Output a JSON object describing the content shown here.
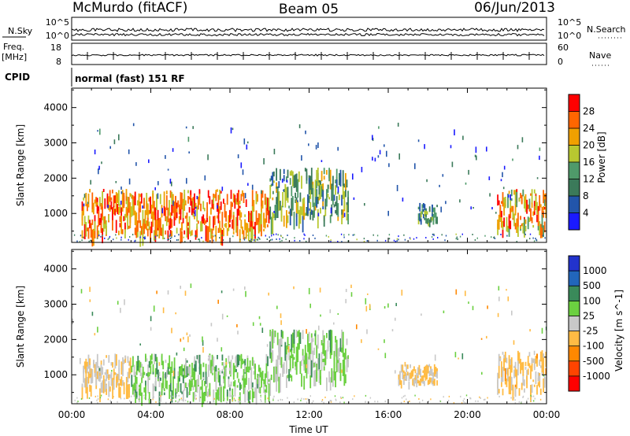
{
  "header": {
    "station": "McMurdo (fitACF)",
    "beam": "Beam 05",
    "date": "06/Jun/2013"
  },
  "top_panels": {
    "nsky_label": "N.Sky",
    "nsearch_label": "N.Search",
    "nsky_ticks": [
      "10^5",
      "10^0"
    ],
    "nsearch_ticks": [
      "10^5",
      "10^0"
    ],
    "freq_label_line1": "Freq.",
    "freq_label_line2": "[MHz]",
    "freq_ticks": [
      "18",
      "8"
    ],
    "nave_label": "Nave",
    "nave_ticks": [
      "60",
      "0"
    ],
    "cpid_label": "CPID",
    "cpid_value": "normal (fast) 151 RF"
  },
  "colors": {
    "power_scale": [
      "#1a1aff",
      "#2255aa",
      "#3b7a5a",
      "#4f9a6a",
      "#b8c830",
      "#f0a000",
      "#ff6600",
      "#ff0000"
    ],
    "velocity_scale": [
      "#ff0000",
      "#ff4400",
      "#ff8800",
      "#ffbb44",
      "#c8c8c8",
      "#6bd040",
      "#3a8a5a",
      "#2266bb",
      "#2233cc"
    ]
  },
  "chart_data": [
    {
      "type": "heatmap",
      "title": "",
      "xlabel": "",
      "ylabel": "Slant Range [km]",
      "x_ticks": [
        "00:00",
        "04:00",
        "08:00",
        "12:00",
        "16:00",
        "20:00",
        "00:00"
      ],
      "y_ticks": [
        "1000",
        "2000",
        "3000",
        "4000"
      ],
      "ylim": [
        180,
        4550
      ],
      "colorbar_label": "Power [dB]",
      "colorbar_ticks": [
        "4",
        "8",
        "12",
        "16",
        "20",
        "24",
        "28"
      ],
      "zlim": [
        0,
        32
      ],
      "scatter_regions": [
        {
          "start_hour": 0.5,
          "end_hour": 10.0,
          "range_low_km": 500,
          "range_high_km": 1700,
          "typical_value": 24
        },
        {
          "start_hour": 10.0,
          "end_hour": 14.0,
          "range_low_km": 900,
          "range_high_km": 2300,
          "typical_value": 14
        },
        {
          "start_hour": 17.5,
          "end_hour": 18.5,
          "range_low_km": 800,
          "range_high_km": 1300,
          "typical_value": 12
        },
        {
          "start_hour": 21.5,
          "end_hour": 24.0,
          "range_low_km": 600,
          "range_high_km": 1700,
          "typical_value": 22
        }
      ]
    },
    {
      "type": "heatmap",
      "title": "",
      "xlabel": "Time UT",
      "ylabel": "Slant Range [km]",
      "x_ticks": [
        "00:00",
        "04:00",
        "08:00",
        "12:00",
        "16:00",
        "20:00",
        "00:00"
      ],
      "y_ticks": [
        "1000",
        "2000",
        "3000",
        "4000"
      ],
      "ylim": [
        180,
        4550
      ],
      "colorbar_label": "Velocity [m s^-1]",
      "colorbar_ticks": [
        "-1000",
        "-500",
        "-100",
        "-25",
        "25",
        "100",
        "500",
        "1000"
      ],
      "zlim": [
        -1250,
        1250
      ],
      "scatter_regions": [
        {
          "start_hour": 0.5,
          "end_hour": 3.0,
          "range_low_km": 600,
          "range_high_km": 1600,
          "typical_value": -150
        },
        {
          "start_hour": 3.0,
          "end_hour": 10.0,
          "range_low_km": 500,
          "range_high_km": 1600,
          "typical_value": 250
        },
        {
          "start_hour": 10.0,
          "end_hour": 14.0,
          "range_low_km": 900,
          "range_high_km": 2300,
          "typical_value": 200
        },
        {
          "start_hour": 16.5,
          "end_hour": 18.5,
          "range_low_km": 800,
          "range_high_km": 1300,
          "typical_value": -150
        },
        {
          "start_hour": 21.5,
          "end_hour": 24.0,
          "range_low_km": 600,
          "range_high_km": 1700,
          "typical_value": -200
        }
      ]
    }
  ]
}
